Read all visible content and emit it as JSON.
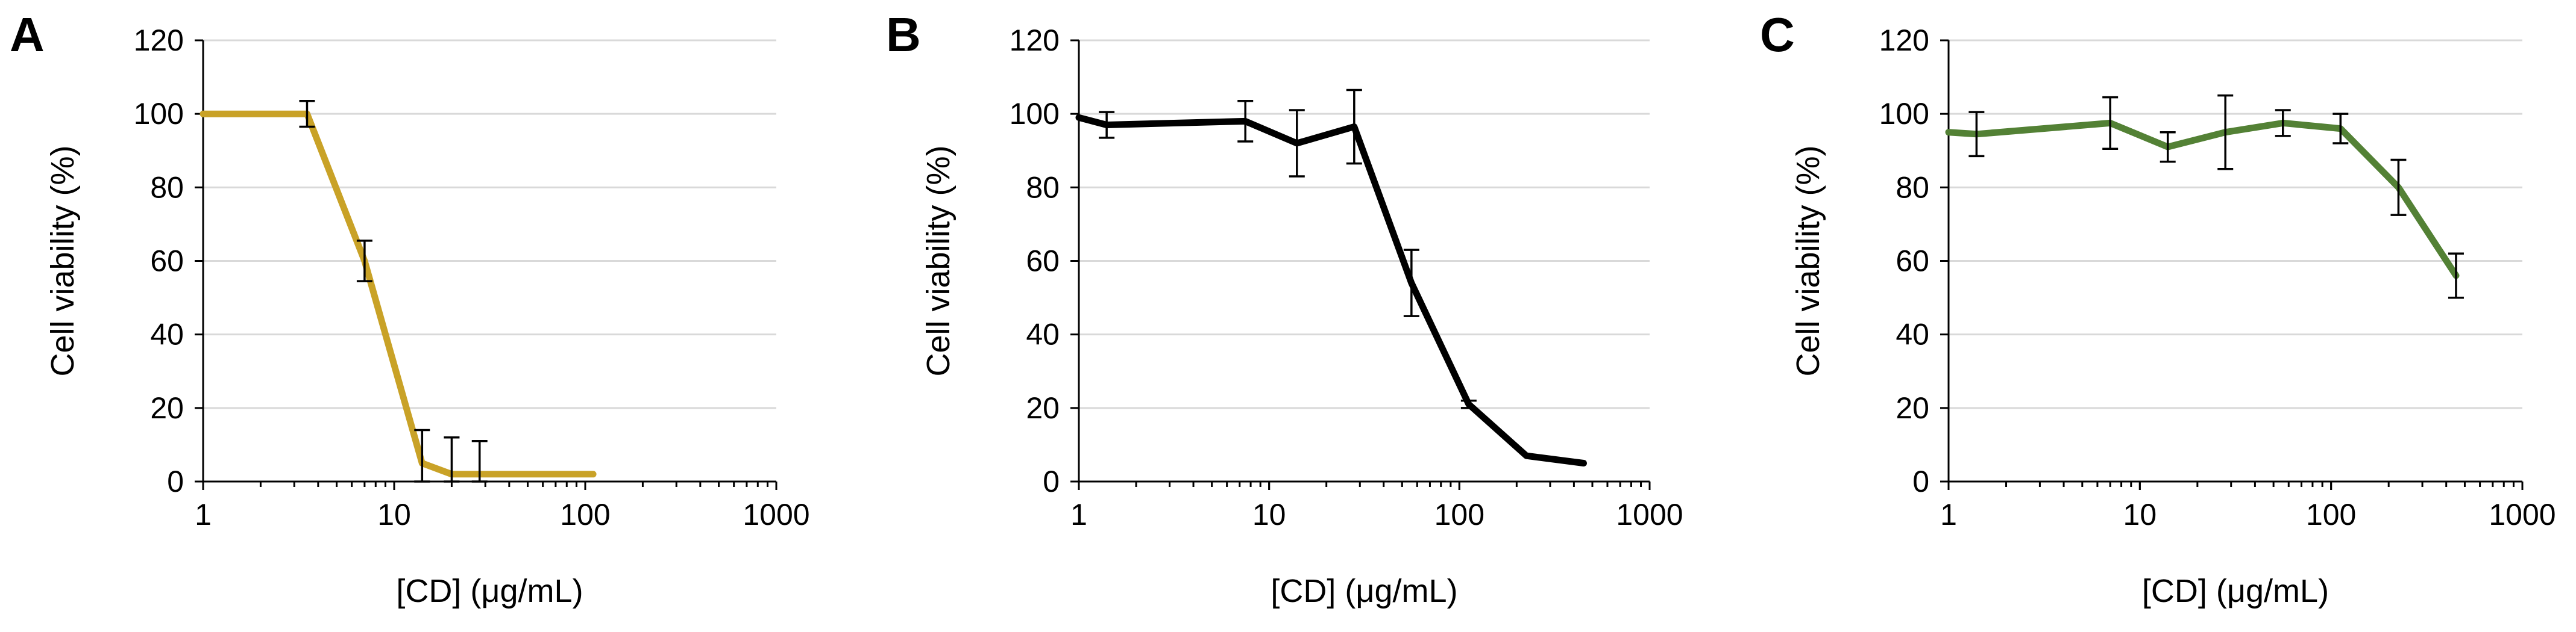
{
  "chart_data": [
    {
      "type": "line",
      "panel": "A",
      "color": "#C9A227",
      "xscale": "log",
      "xlim": [
        1,
        1000
      ],
      "ylim": [
        0,
        120
      ],
      "xticks": [
        1,
        10,
        100,
        1000
      ],
      "xtick_labels": [
        "1",
        "10",
        "100",
        "1000"
      ],
      "yticks": [
        0,
        20,
        40,
        60,
        80,
        100,
        120
      ],
      "ytick_labels": [
        "0",
        "20",
        "40",
        "60",
        "80",
        "100",
        "120"
      ],
      "xlabel": "[CD] (μg/mL)",
      "ylabel": "Cell viability (%)",
      "grid": true,
      "x": [
        1,
        3.5,
        7,
        14,
        20,
        28,
        110
      ],
      "y": [
        100,
        100,
        60,
        5,
        2,
        2,
        2
      ],
      "error": [
        0,
        3.5,
        5.5,
        9,
        10,
        9,
        0
      ]
    },
    {
      "type": "line",
      "panel": "B",
      "color": "#000000",
      "xscale": "log",
      "xlim": [
        1,
        1000
      ],
      "ylim": [
        0,
        120
      ],
      "xticks": [
        1,
        10,
        100,
        1000
      ],
      "xtick_labels": [
        "1",
        "10",
        "100",
        "1000"
      ],
      "yticks": [
        0,
        20,
        40,
        60,
        80,
        100,
        120
      ],
      "ytick_labels": [
        "0",
        "20",
        "40",
        "60",
        "80",
        "100",
        "120"
      ],
      "xlabel": "[CD] (μg/mL)",
      "ylabel": "Cell viability (%)",
      "grid": true,
      "x": [
        1,
        1.4,
        7.5,
        14,
        28,
        56,
        112,
        225,
        450
      ],
      "y": [
        99,
        97,
        98,
        92,
        96.5,
        54,
        21,
        7,
        5
      ],
      "error": [
        0,
        3.5,
        5.5,
        9,
        10,
        9,
        1,
        0,
        0
      ]
    },
    {
      "type": "line",
      "panel": "C",
      "color": "#538135",
      "xscale": "log",
      "xlim": [
        1,
        1000
      ],
      "ylim": [
        0,
        120
      ],
      "xticks": [
        1,
        10,
        100,
        1000
      ],
      "xtick_labels": [
        "1",
        "10",
        "100",
        "1000"
      ],
      "yticks": [
        0,
        20,
        40,
        60,
        80,
        100,
        120
      ],
      "ytick_labels": [
        "0",
        "20",
        "40",
        "60",
        "80",
        "100",
        "120"
      ],
      "xlabel": "[CD] (μg/mL)",
      "ylabel": "Cell viability (%)",
      "grid": true,
      "x": [
        1,
        1.4,
        7,
        14,
        28,
        56,
        112,
        225,
        450
      ],
      "y": [
        95,
        94.5,
        97.5,
        91,
        95,
        97.5,
        96,
        80,
        56
      ],
      "error": [
        0,
        6,
        7,
        4,
        10,
        3.5,
        4,
        7.5,
        6
      ]
    }
  ]
}
